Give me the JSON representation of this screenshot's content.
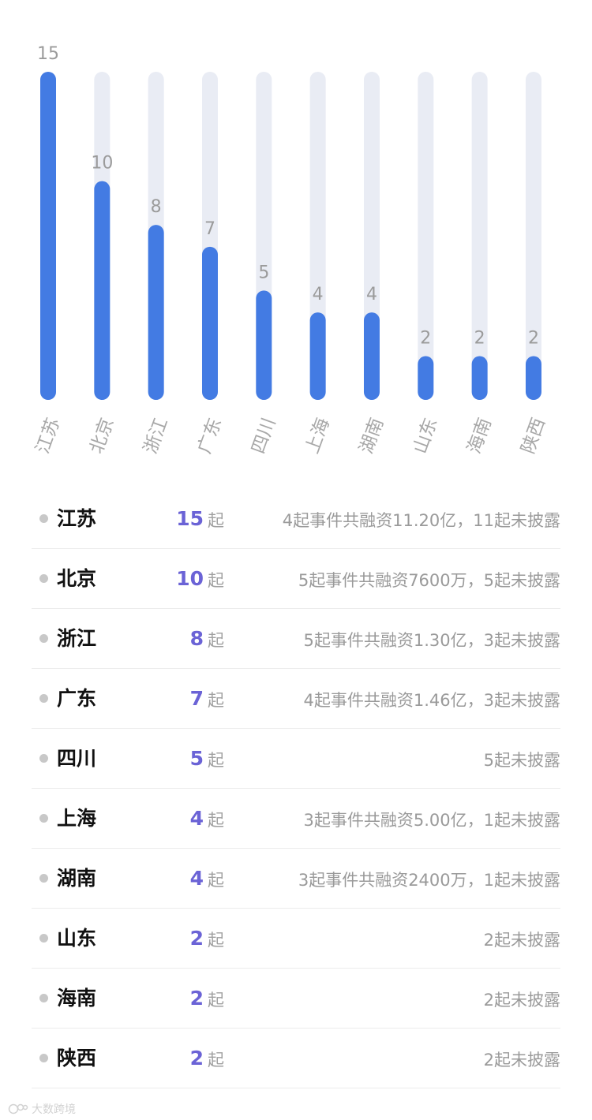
{
  "chart_data": {
    "type": "bar",
    "categories": [
      "江苏",
      "北京",
      "浙江",
      "广东",
      "四川",
      "上海",
      "湖南",
      "山东",
      "海南",
      "陕西"
    ],
    "values": [
      15,
      10,
      8,
      7,
      5,
      4,
      4,
      2,
      2,
      2
    ],
    "ylim": [
      0,
      15
    ],
    "grid": false,
    "legend": "none",
    "colors": {
      "bar": "#437be3",
      "track": "#e9ecf4"
    }
  },
  "table": {
    "rows": [
      {
        "name": "江苏",
        "count": "15",
        "unit": "起",
        "desc": "4起事件共融资11.20亿，11起未披露"
      },
      {
        "name": "北京",
        "count": "10",
        "unit": "起",
        "desc": "5起事件共融资7600万，5起未披露"
      },
      {
        "name": "浙江",
        "count": "8",
        "unit": "起",
        "desc": "5起事件共融资1.30亿，3起未披露"
      },
      {
        "name": "广东",
        "count": "7",
        "unit": "起",
        "desc": "4起事件共融资1.46亿，3起未披露"
      },
      {
        "name": "四川",
        "count": "5",
        "unit": "起",
        "desc": "5起未披露"
      },
      {
        "name": "上海",
        "count": "4",
        "unit": "起",
        "desc": "3起事件共融资5.00亿，1起未披露"
      },
      {
        "name": "湖南",
        "count": "4",
        "unit": "起",
        "desc": "3起事件共融资2400万，1起未披露"
      },
      {
        "name": "山东",
        "count": "2",
        "unit": "起",
        "desc": "2起未披露"
      },
      {
        "name": "海南",
        "count": "2",
        "unit": "起",
        "desc": "2起未披露"
      },
      {
        "name": "陕西",
        "count": "2",
        "unit": "起",
        "desc": "2起未披露"
      }
    ],
    "colors": {
      "count": "#6b63d6",
      "dot": "#c8c8c8"
    }
  },
  "watermark": {
    "text": "大数跨境",
    "icon": "logo-icon"
  }
}
